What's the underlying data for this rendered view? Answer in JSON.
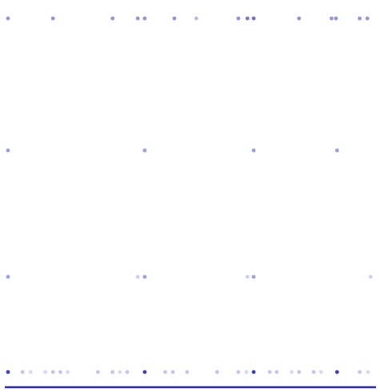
{
  "chart_data": {
    "type": "scatter",
    "title": "",
    "xlabel": "",
    "ylabel": "",
    "grid": false,
    "legend": "none",
    "point_color": "#3b3bd6",
    "baseline_color": "#2727c8",
    "x_range": [
      0,
      1
    ],
    "y_levels": [
      3,
      2,
      1,
      0
    ],
    "series": [
      {
        "points": [
          {
            "x": 0.0,
            "y": 3,
            "opacity": 0.55
          },
          {
            "x": 0.123,
            "y": 3,
            "opacity": 0.55
          },
          {
            "x": 0.286,
            "y": 3,
            "opacity": 0.55
          },
          {
            "x": 0.355,
            "y": 3,
            "opacity": 0.55
          },
          {
            "x": 0.374,
            "y": 3,
            "opacity": 0.55
          },
          {
            "x": 0.455,
            "y": 3,
            "opacity": 0.55
          },
          {
            "x": 0.515,
            "y": 3,
            "opacity": 0.35
          },
          {
            "x": 0.63,
            "y": 3,
            "opacity": 0.55
          },
          {
            "x": 0.655,
            "y": 3,
            "opacity": 0.7
          },
          {
            "x": 0.672,
            "y": 3,
            "opacity": 0.75
          },
          {
            "x": 0.796,
            "y": 3,
            "opacity": 0.55
          },
          {
            "x": 0.885,
            "y": 3,
            "opacity": 0.55
          },
          {
            "x": 0.897,
            "y": 3,
            "opacity": 0.55
          },
          {
            "x": 0.962,
            "y": 3,
            "opacity": 0.55
          },
          {
            "x": 0.983,
            "y": 3,
            "opacity": 0.55
          },
          {
            "x": 0.0,
            "y": 2,
            "opacity": 0.5
          },
          {
            "x": 0.374,
            "y": 2,
            "opacity": 0.5
          },
          {
            "x": 0.672,
            "y": 2,
            "opacity": 0.5
          },
          {
            "x": 0.9,
            "y": 2,
            "opacity": 0.5
          },
          {
            "x": 0.0,
            "y": 1,
            "opacity": 0.5
          },
          {
            "x": 0.355,
            "y": 1,
            "opacity": 0.25
          },
          {
            "x": 0.374,
            "y": 1,
            "opacity": 0.5
          },
          {
            "x": 0.655,
            "y": 1,
            "opacity": 0.25
          },
          {
            "x": 0.672,
            "y": 1,
            "opacity": 0.5
          },
          {
            "x": 0.992,
            "y": 1,
            "opacity": 0.25
          },
          {
            "x": 0.0,
            "y": 0,
            "opacity": 1.0
          },
          {
            "x": 0.04,
            "y": 0,
            "opacity": 0.3
          },
          {
            "x": 0.062,
            "y": 0,
            "opacity": 0.2
          },
          {
            "x": 0.102,
            "y": 0,
            "opacity": 0.2
          },
          {
            "x": 0.123,
            "y": 0,
            "opacity": 0.3
          },
          {
            "x": 0.143,
            "y": 0,
            "opacity": 0.3
          },
          {
            "x": 0.163,
            "y": 0,
            "opacity": 0.2
          },
          {
            "x": 0.246,
            "y": 0,
            "opacity": 0.3
          },
          {
            "x": 0.286,
            "y": 0,
            "opacity": 0.3
          },
          {
            "x": 0.306,
            "y": 0,
            "opacity": 0.2
          },
          {
            "x": 0.326,
            "y": 0,
            "opacity": 0.3
          },
          {
            "x": 0.374,
            "y": 0,
            "opacity": 1.0
          },
          {
            "x": 0.43,
            "y": 0,
            "opacity": 0.3
          },
          {
            "x": 0.451,
            "y": 0,
            "opacity": 0.3
          },
          {
            "x": 0.49,
            "y": 0,
            "opacity": 0.3
          },
          {
            "x": 0.572,
            "y": 0,
            "opacity": 0.3
          },
          {
            "x": 0.63,
            "y": 0,
            "opacity": 0.3
          },
          {
            "x": 0.652,
            "y": 0,
            "opacity": 0.2
          },
          {
            "x": 0.672,
            "y": 0,
            "opacity": 1.0
          },
          {
            "x": 0.716,
            "y": 0,
            "opacity": 0.3
          },
          {
            "x": 0.735,
            "y": 0,
            "opacity": 0.3
          },
          {
            "x": 0.776,
            "y": 0,
            "opacity": 0.2
          },
          {
            "x": 0.796,
            "y": 0,
            "opacity": 0.3
          },
          {
            "x": 0.836,
            "y": 0,
            "opacity": 0.3
          },
          {
            "x": 0.856,
            "y": 0,
            "opacity": 0.2
          },
          {
            "x": 0.9,
            "y": 0,
            "opacity": 1.0
          },
          {
            "x": 0.962,
            "y": 0,
            "opacity": 0.3
          },
          {
            "x": 0.985,
            "y": 0,
            "opacity": 0.2
          }
        ]
      }
    ]
  }
}
